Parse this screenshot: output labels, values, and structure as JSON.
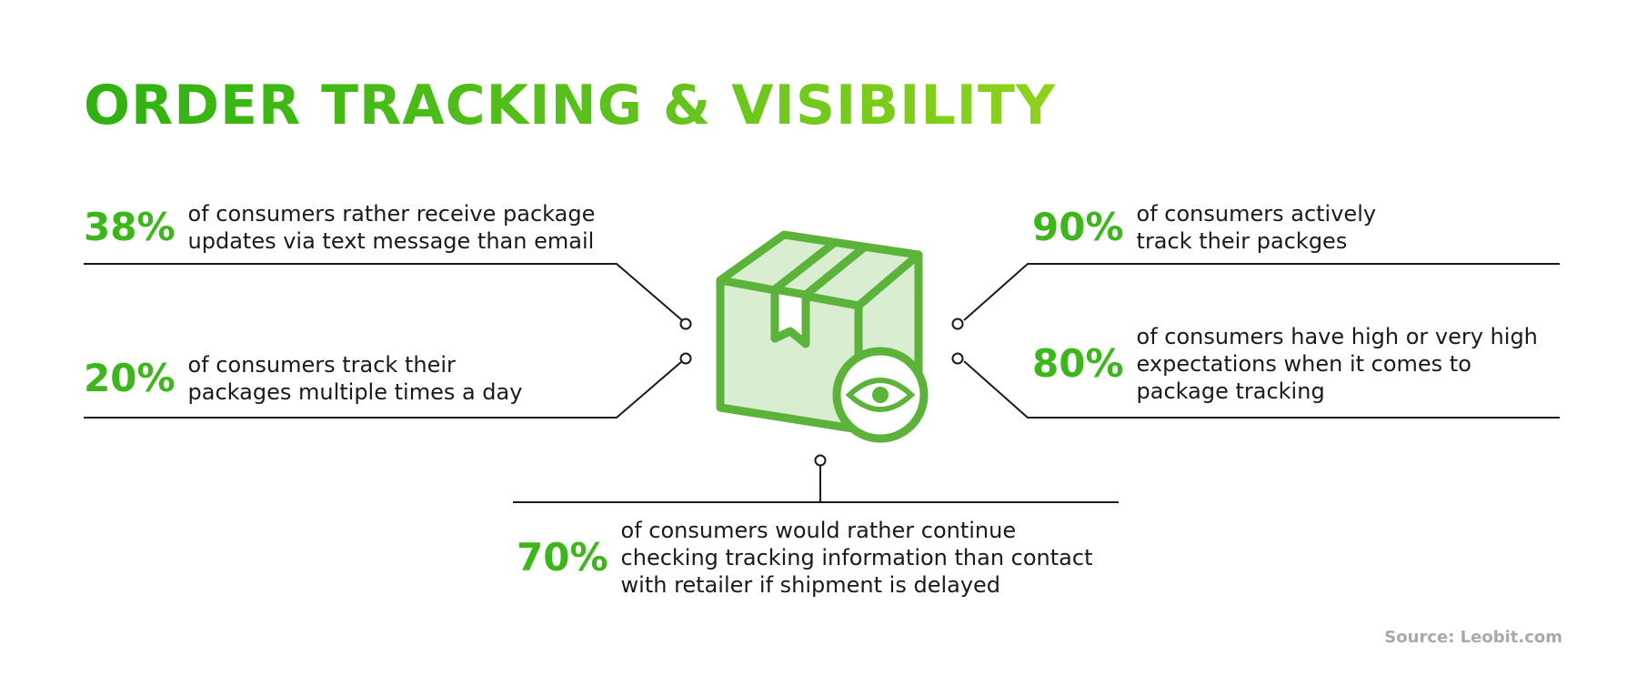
{
  "title": "ORDER TRACKING & VISIBILITY",
  "stats": {
    "s38": {
      "value": "38%",
      "text_line1": "of consumers rather receive package",
      "text_line2": "updates via text message than email"
    },
    "s20": {
      "value": "20%",
      "text_line1": "of consumers track their",
      "text_line2": "packages multiple times a day"
    },
    "s90": {
      "value": "90%",
      "text_line1": "of consumers actively",
      "text_line2": "track their packges"
    },
    "s80": {
      "value": "80%",
      "text_line1": "of consumers have high or very high",
      "text_line2": "expectations when it comes to",
      "text_line3": "package tracking"
    },
    "s70": {
      "value": "70%",
      "text_line1": "of consumers would rather continue",
      "text_line2": "checking tracking information than contact",
      "text_line3": "with retailer if shipment is delayed"
    }
  },
  "source": "Source: Leobit.com",
  "icons": {
    "center": "package-eye-icon"
  },
  "colors": {
    "accent": "#3cb719",
    "box_fill": "#d9edd0",
    "box_stroke": "#5bb33a"
  }
}
